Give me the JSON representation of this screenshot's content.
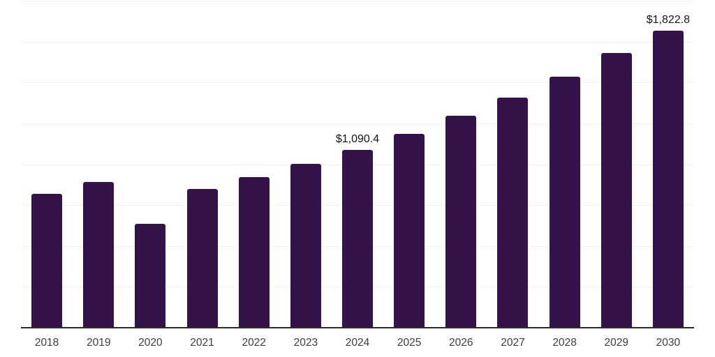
{
  "chart_data": {
    "type": "bar",
    "title": "",
    "xlabel": "",
    "ylabel": "",
    "categories": [
      "2018",
      "2019",
      "2020",
      "2021",
      "2022",
      "2023",
      "2024",
      "2025",
      "2026",
      "2027",
      "2028",
      "2029",
      "2030"
    ],
    "values": [
      823,
      894,
      641,
      851,
      926,
      1007,
      1090.4,
      1190,
      1299,
      1413,
      1540,
      1683,
      1822.8
    ],
    "point_labels": [
      null,
      null,
      null,
      null,
      null,
      null,
      "$1,090.4",
      null,
      null,
      null,
      null,
      null,
      "$1,822.8"
    ],
    "ylim": [
      0,
      2000
    ],
    "gridline_step": 250,
    "grid": "horizontal",
    "legend": "none",
    "y_tick_labels_visible": false,
    "colors": {
      "bar": "#33134A",
      "axis": "#2B2B2B",
      "gridline": "#F3F3F3",
      "tick_label": "#3D3D3D",
      "data_label": "#141414",
      "background": "#FFFFFF"
    }
  }
}
